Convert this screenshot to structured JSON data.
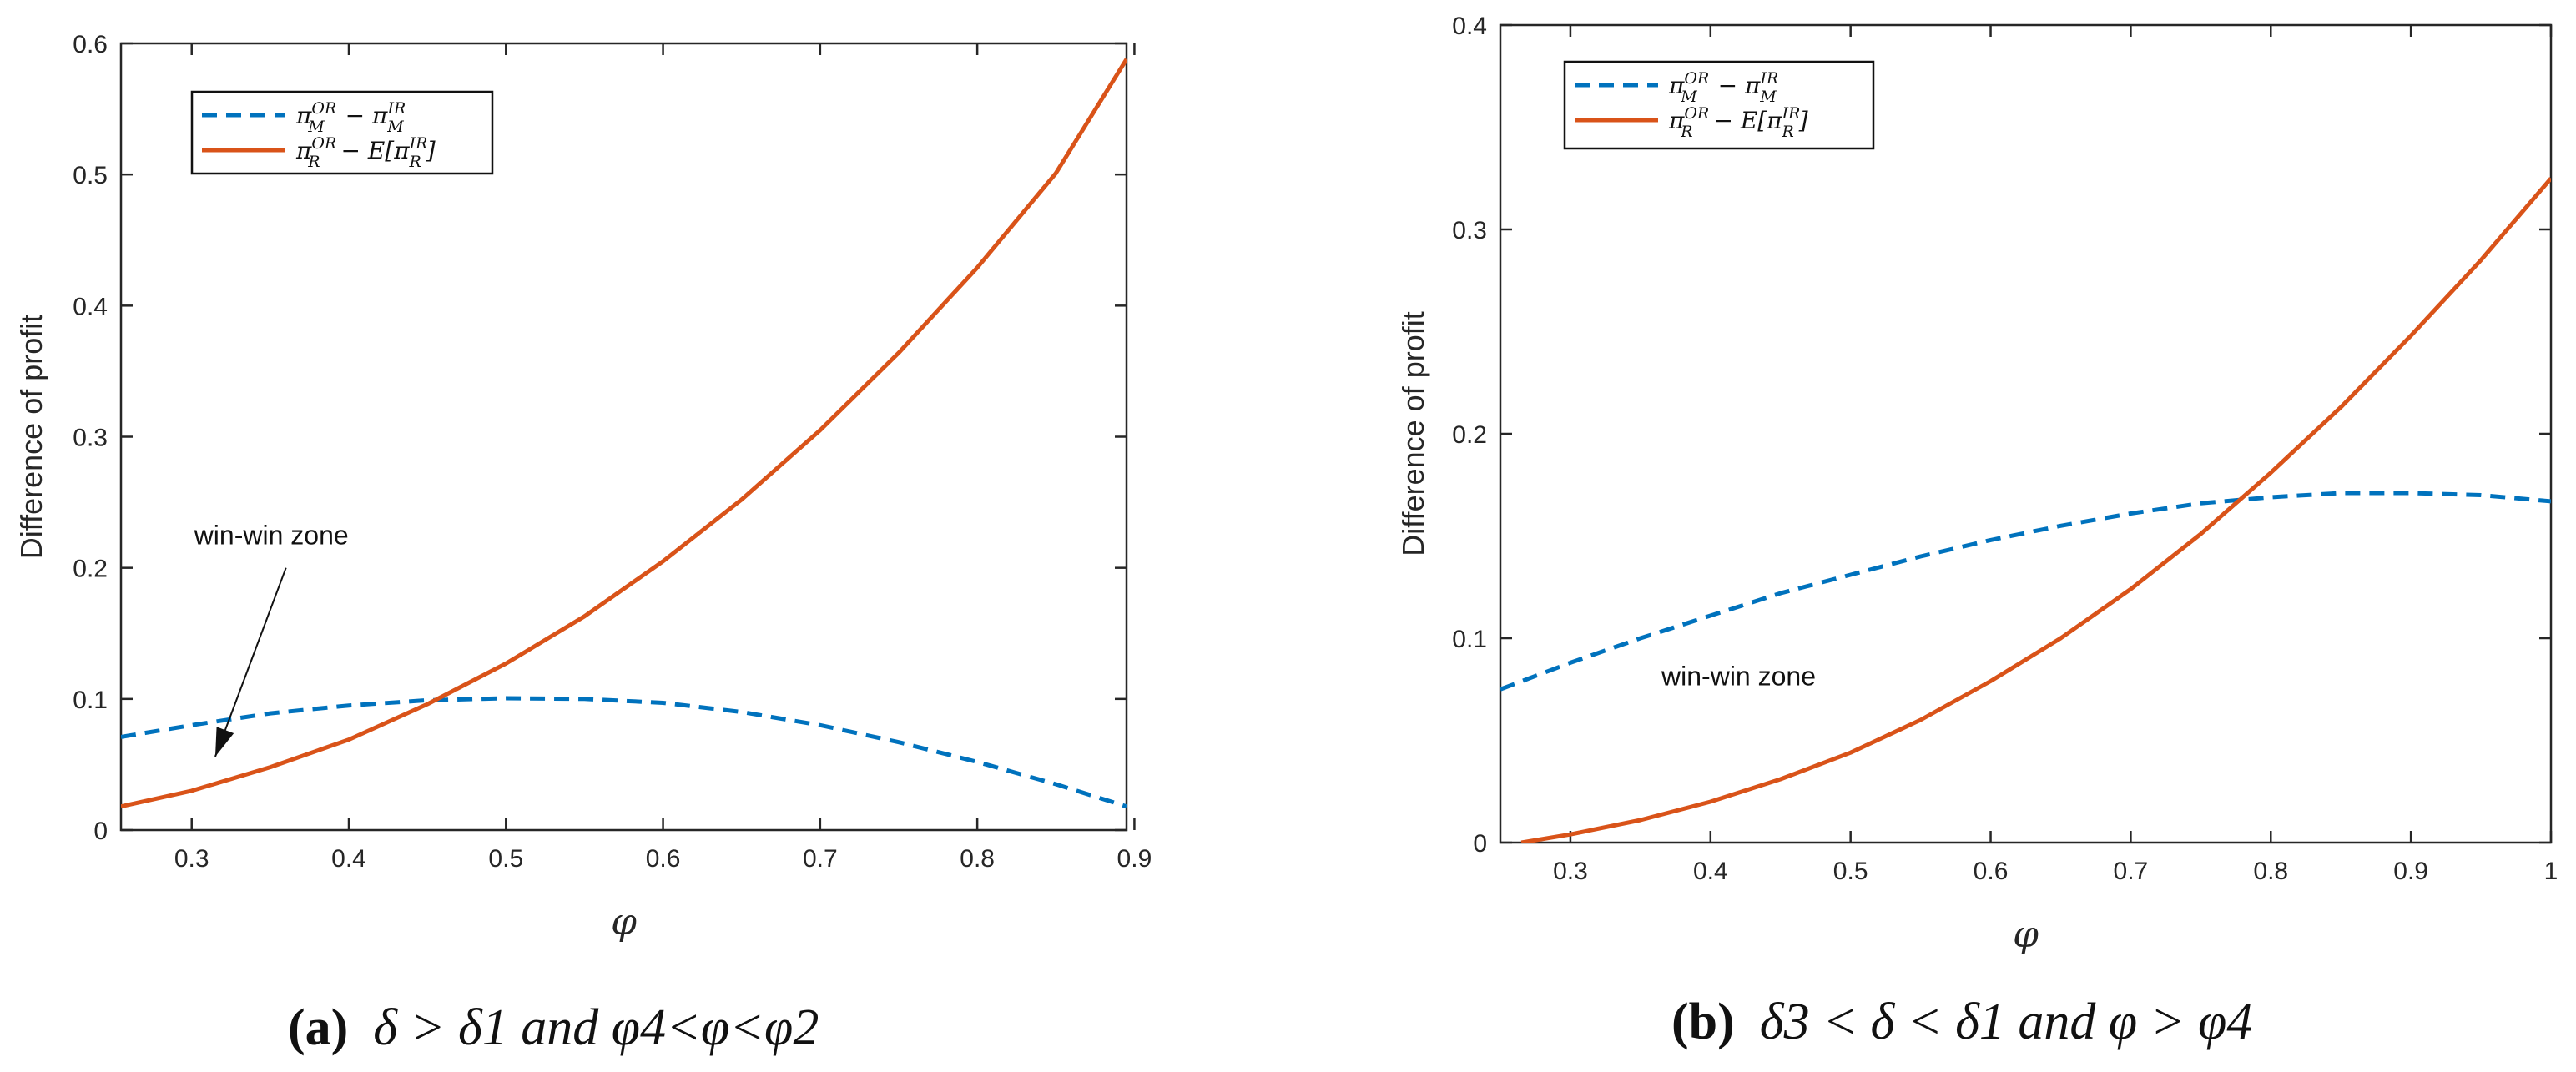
{
  "chart_data": [
    {
      "type": "line",
      "panel_id": "a",
      "caption": {
        "label": "(a)",
        "text": "δ > δ1 and φ4<φ<φ2"
      },
      "xlabel": "φ",
      "ylabel": "Difference of profit",
      "xlim": [
        0.255,
        0.895
      ],
      "ylim": [
        0,
        0.6
      ],
      "x_ticks": [
        0.3,
        0.4,
        0.5,
        0.6,
        0.7,
        0.8,
        0.9
      ],
      "x_tick_labels": [
        "0.3",
        "0.4",
        "0.5",
        "0.6",
        "0.7",
        "0.8",
        "0.9"
      ],
      "y_ticks": [
        0,
        0.1,
        0.2,
        0.3,
        0.4,
        0.5,
        0.6
      ],
      "y_tick_labels": [
        "0",
        "0.1",
        "0.2",
        "0.3",
        "0.4",
        "0.5",
        "0.6"
      ],
      "grid": false,
      "legend_position": "top-left",
      "annotation": {
        "text": "win-win zone",
        "arrow_tail": [
          0.36,
          0.2
        ],
        "arrow_head": [
          0.315,
          0.056
        ]
      },
      "series": [
        {
          "name": "π_M^OR − π_M^IR",
          "legend_main": "π",
          "legend_sup1": "OR",
          "legend_sub1": "M",
          "legend_mid": " − π",
          "legend_sup2": "IR",
          "legend_sub2": "M",
          "legend_tail": "",
          "style": "dashed",
          "color": "#0072BD",
          "x": [
            0.255,
            0.3,
            0.35,
            0.4,
            0.45,
            0.5,
            0.55,
            0.6,
            0.65,
            0.7,
            0.75,
            0.8,
            0.85,
            0.895
          ],
          "y": [
            0.071,
            0.08,
            0.089,
            0.095,
            0.099,
            0.1005,
            0.1,
            0.097,
            0.09,
            0.08,
            0.067,
            0.052,
            0.035,
            0.018
          ]
        },
        {
          "name": "π_R^OR − E[π_R^IR]",
          "legend_main": "π",
          "legend_sup1": "OR",
          "legend_sub1": "R",
          "legend_mid": " − E[π",
          "legend_sup2": "IR",
          "legend_sub2": "R",
          "legend_tail": "]",
          "style": "solid",
          "color": "#D95319",
          "x": [
            0.255,
            0.3,
            0.35,
            0.4,
            0.45,
            0.5,
            0.55,
            0.6,
            0.65,
            0.7,
            0.75,
            0.8,
            0.85,
            0.895
          ],
          "y": [
            0.018,
            0.03,
            0.048,
            0.069,
            0.096,
            0.127,
            0.163,
            0.205,
            0.252,
            0.305,
            0.364,
            0.429,
            0.501,
            0.588
          ]
        }
      ]
    },
    {
      "type": "line",
      "panel_id": "b",
      "caption": {
        "label": "(b)",
        "text": "δ3 < δ < δ1 and φ > φ4"
      },
      "xlabel": "φ",
      "ylabel": "Difference of profit",
      "xlim": [
        0.25,
        1.0
      ],
      "ylim": [
        0,
        0.4
      ],
      "x_ticks": [
        0.3,
        0.4,
        0.5,
        0.6,
        0.7,
        0.8,
        0.9,
        1.0
      ],
      "x_tick_labels": [
        "0.3",
        "0.4",
        "0.5",
        "0.6",
        "0.7",
        "0.8",
        "0.9",
        "1"
      ],
      "y_ticks": [
        0,
        0.1,
        0.2,
        0.3,
        0.4
      ],
      "y_tick_labels": [
        "0",
        "0.1",
        "0.2",
        "0.3",
        "0.4"
      ],
      "grid": false,
      "legend_position": "top-left",
      "annotation": {
        "text": "win-win zone",
        "position": [
          0.365,
          0.077
        ]
      },
      "series": [
        {
          "name": "π_M^OR − π_M^IR",
          "legend_main": "π",
          "legend_sup1": "OR",
          "legend_sub1": "M",
          "legend_mid": " − π",
          "legend_sup2": "IR",
          "legend_sub2": "M",
          "legend_tail": "",
          "style": "dashed",
          "color": "#0072BD",
          "x": [
            0.25,
            0.3,
            0.35,
            0.4,
            0.45,
            0.5,
            0.55,
            0.6,
            0.65,
            0.7,
            0.75,
            0.8,
            0.85,
            0.9,
            0.95,
            1.0
          ],
          "y": [
            0.075,
            0.088,
            0.1,
            0.111,
            0.122,
            0.131,
            0.14,
            0.148,
            0.155,
            0.161,
            0.166,
            0.169,
            0.171,
            0.171,
            0.17,
            0.167
          ]
        },
        {
          "name": "π_R^OR − E[π_R^IR]",
          "legend_main": "π",
          "legend_sup1": "OR",
          "legend_sub1": "R",
          "legend_mid": " − E[π",
          "legend_sup2": "IR",
          "legend_sub2": "R",
          "legend_tail": "]",
          "style": "solid",
          "color": "#D95319",
          "x": [
            0.265,
            0.3,
            0.35,
            0.4,
            0.45,
            0.5,
            0.55,
            0.6,
            0.65,
            0.7,
            0.75,
            0.8,
            0.85,
            0.9,
            0.95,
            1.0
          ],
          "y": [
            0.0,
            0.004,
            0.011,
            0.02,
            0.031,
            0.044,
            0.06,
            0.079,
            0.1,
            0.124,
            0.151,
            0.181,
            0.213,
            0.248,
            0.285,
            0.325
          ]
        }
      ]
    }
  ]
}
